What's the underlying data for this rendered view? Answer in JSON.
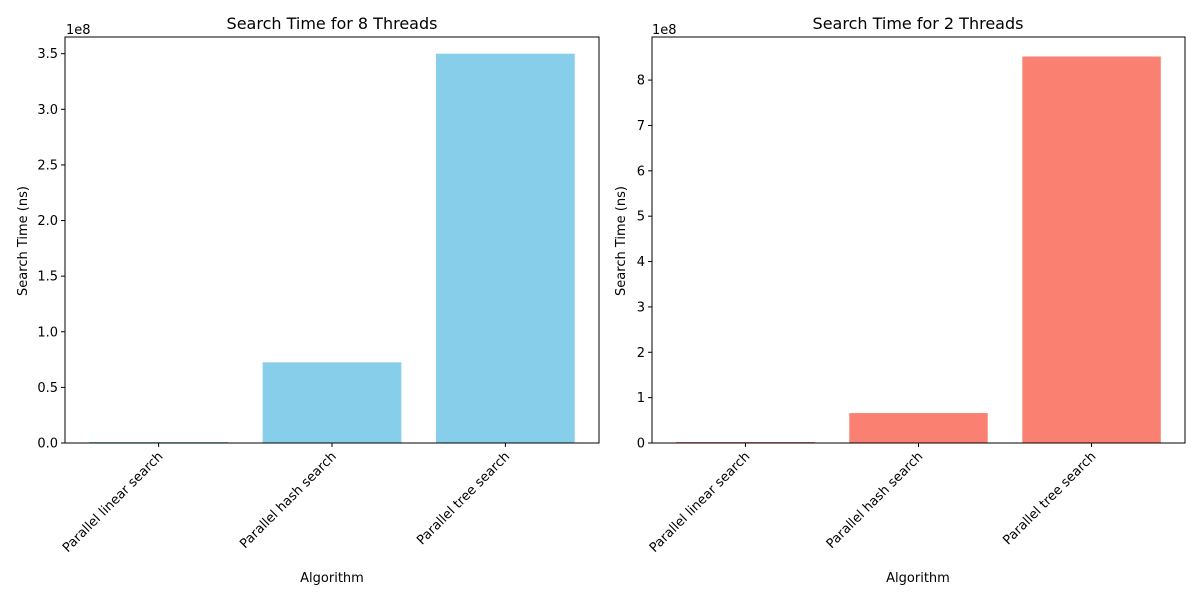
{
  "chart_data": [
    {
      "type": "bar",
      "title": "Search Time for 8 Threads",
      "xlabel": "Algorithm",
      "ylabel": "Search Time (ns)",
      "offset_label": "1e8",
      "categories": [
        "Parallel linear search",
        "Parallel hash search",
        "Parallel tree search"
      ],
      "values": [
        800000,
        72500000,
        350000000
      ],
      "ylim": [
        0,
        365000000
      ],
      "yticks": [
        0.0,
        0.5,
        1.0,
        1.5,
        2.0,
        2.5,
        3.0,
        3.5
      ],
      "ytick_labels": [
        "0.0",
        "0.5",
        "1.0",
        "1.5",
        "2.0",
        "2.5",
        "3.0",
        "3.5"
      ],
      "tick_multiplier": 100000000,
      "color": "#87ceeb",
      "grid": false
    },
    {
      "type": "bar",
      "title": "Search Time for 2 Threads",
      "xlabel": "Algorithm",
      "ylabel": "Search Time (ns)",
      "offset_label": "1e8",
      "categories": [
        "Parallel linear search",
        "Parallel hash search",
        "Parallel tree search"
      ],
      "values": [
        2000000,
        66000000,
        852000000
      ],
      "ylim": [
        0,
        895000000
      ],
      "yticks": [
        0,
        1,
        2,
        3,
        4,
        5,
        6,
        7,
        8
      ],
      "ytick_labels": [
        "0",
        "1",
        "2",
        "3",
        "4",
        "5",
        "6",
        "7",
        "8"
      ],
      "tick_multiplier": 100000000,
      "color": "#fa8072",
      "grid": false
    }
  ]
}
